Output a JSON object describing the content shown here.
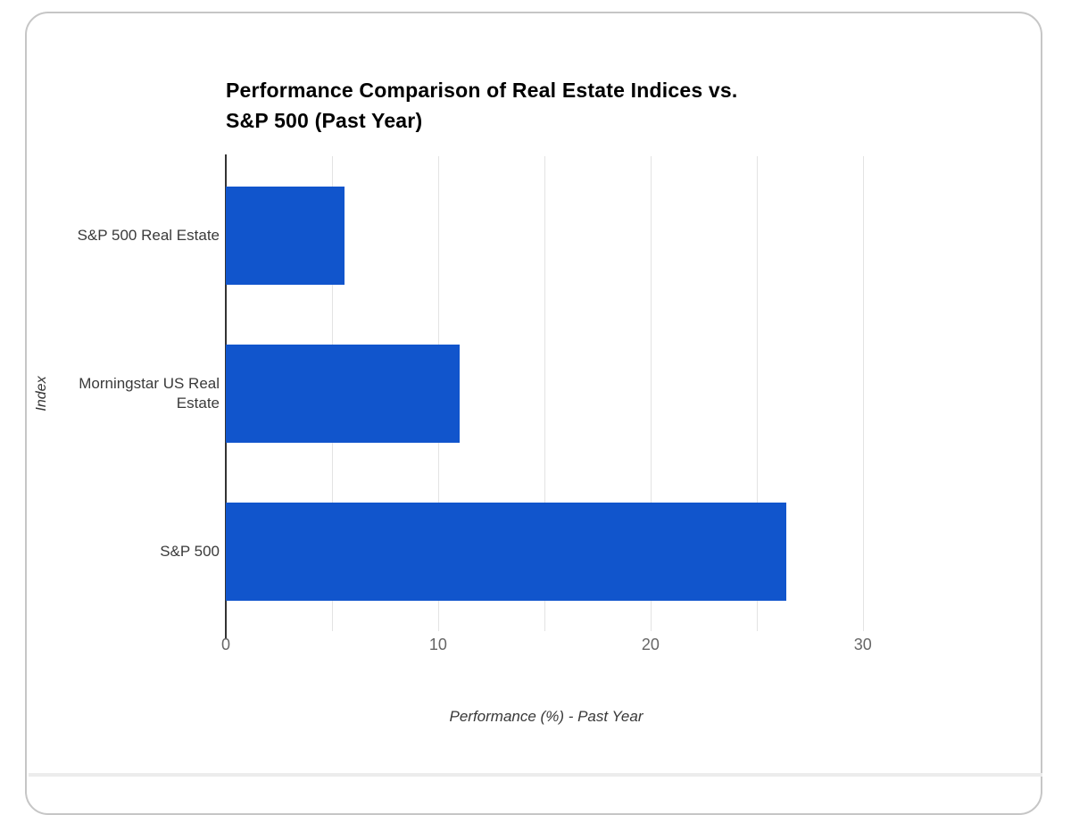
{
  "chart_data": {
    "type": "bar",
    "orientation": "horizontal",
    "title": "Performance Comparison of Real Estate Indices vs. S&P 500 (Past Year)",
    "title_lines": [
      "Performance Comparison of Real Estate Indices vs.",
      "S&P 500 (Past Year)"
    ],
    "categories": [
      "S&P 500 Real Estate",
      "Morningstar US Real Estate",
      "S&P 500"
    ],
    "values": [
      5.6,
      11,
      26.4
    ],
    "xlabel": "Performance (%) - Past Year",
    "ylabel": "Index",
    "xlim": [
      0,
      35.6
    ],
    "xticks": [
      0,
      10,
      20,
      30
    ],
    "gridline_values": [
      5,
      10,
      15,
      20,
      25,
      30
    ],
    "grid": true,
    "legend": "none",
    "bar_color": "#1155cc",
    "grid_color": "#e3e3e3",
    "axis_line_color": "#333333"
  }
}
